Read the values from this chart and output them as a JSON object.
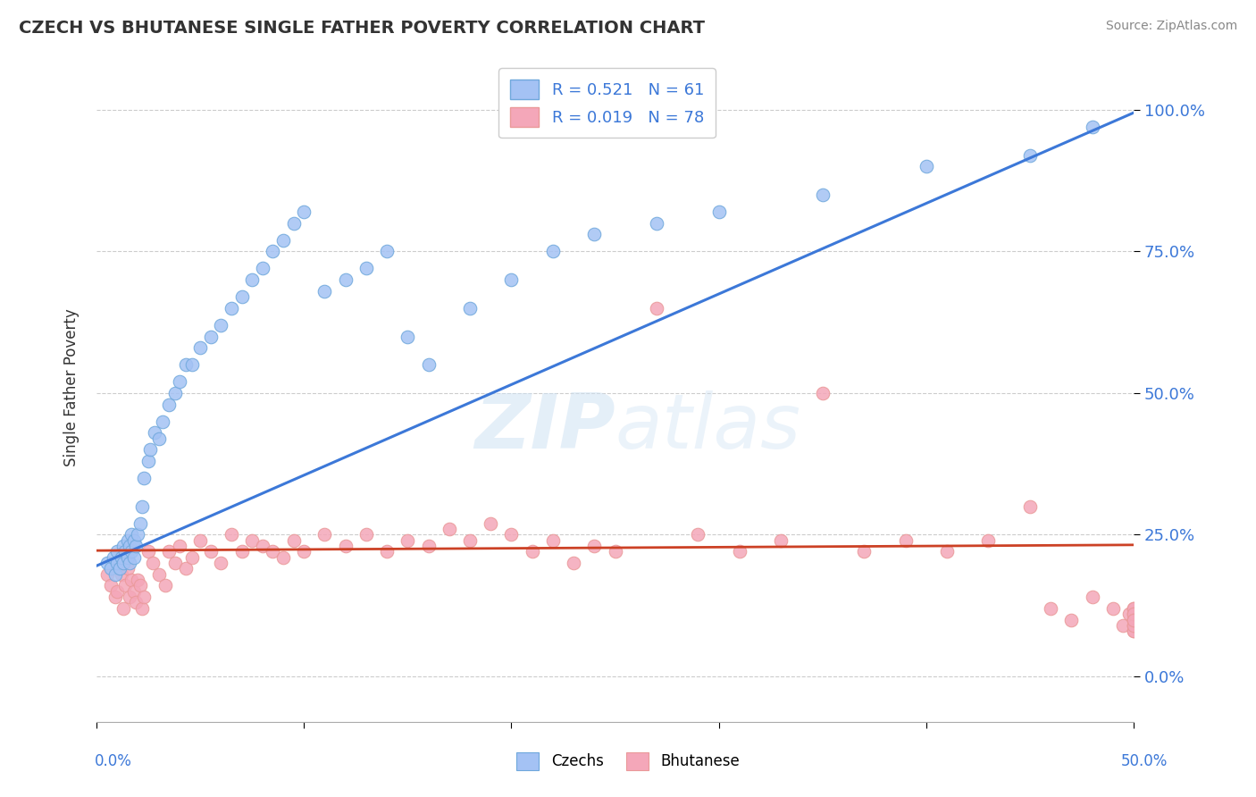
{
  "title": "CZECH VS BHUTANESE SINGLE FATHER POVERTY CORRELATION CHART",
  "source": "Source: ZipAtlas.com",
  "ylabel": "Single Father Poverty",
  "xlim": [
    0,
    0.5
  ],
  "ylim": [
    -0.08,
    1.1
  ],
  "czech_R": 0.521,
  "czech_N": 61,
  "bhutanese_R": 0.019,
  "bhutanese_N": 78,
  "czech_color": "#a4c2f4",
  "czech_color_edge": "#6fa8dc",
  "bhutanese_color": "#f4a7b9",
  "bhutanese_color_edge": "#ea9999",
  "czech_line_color": "#3c78d8",
  "bhutanese_line_color": "#cc4125",
  "watermark_color": "#c9daf8",
  "ytick_labels": [
    "0.0%",
    "25.0%",
    "50.0%",
    "75.0%",
    "100.0%"
  ],
  "ytick_values": [
    0.0,
    0.25,
    0.5,
    0.75,
    1.0
  ],
  "czech_line_x": [
    0.0,
    0.5
  ],
  "czech_line_y": [
    0.195,
    0.995
  ],
  "bhutanese_line_x": [
    0.0,
    0.5
  ],
  "bhutanese_line_y": [
    0.222,
    0.232
  ],
  "czech_scatter_x": [
    0.005,
    0.007,
    0.008,
    0.009,
    0.01,
    0.01,
    0.011,
    0.012,
    0.013,
    0.013,
    0.014,
    0.015,
    0.015,
    0.016,
    0.016,
    0.017,
    0.017,
    0.018,
    0.018,
    0.019,
    0.02,
    0.021,
    0.022,
    0.023,
    0.025,
    0.026,
    0.028,
    0.03,
    0.032,
    0.035,
    0.038,
    0.04,
    0.043,
    0.046,
    0.05,
    0.055,
    0.06,
    0.065,
    0.07,
    0.075,
    0.08,
    0.085,
    0.09,
    0.095,
    0.1,
    0.11,
    0.12,
    0.13,
    0.14,
    0.15,
    0.16,
    0.18,
    0.2,
    0.22,
    0.24,
    0.27,
    0.3,
    0.35,
    0.4,
    0.45,
    0.48
  ],
  "czech_scatter_y": [
    0.2,
    0.19,
    0.21,
    0.18,
    0.2,
    0.22,
    0.19,
    0.21,
    0.2,
    0.23,
    0.22,
    0.21,
    0.24,
    0.2,
    0.23,
    0.22,
    0.25,
    0.21,
    0.24,
    0.23,
    0.25,
    0.27,
    0.3,
    0.35,
    0.38,
    0.4,
    0.43,
    0.42,
    0.45,
    0.48,
    0.5,
    0.52,
    0.55,
    0.55,
    0.58,
    0.6,
    0.62,
    0.65,
    0.67,
    0.7,
    0.72,
    0.75,
    0.77,
    0.8,
    0.82,
    0.68,
    0.7,
    0.72,
    0.75,
    0.6,
    0.55,
    0.65,
    0.7,
    0.75,
    0.78,
    0.8,
    0.82,
    0.85,
    0.9,
    0.92,
    0.97
  ],
  "bhutanese_scatter_x": [
    0.005,
    0.007,
    0.009,
    0.01,
    0.012,
    0.013,
    0.014,
    0.015,
    0.016,
    0.017,
    0.018,
    0.019,
    0.02,
    0.021,
    0.022,
    0.023,
    0.025,
    0.027,
    0.03,
    0.033,
    0.035,
    0.038,
    0.04,
    0.043,
    0.046,
    0.05,
    0.055,
    0.06,
    0.065,
    0.07,
    0.075,
    0.08,
    0.085,
    0.09,
    0.095,
    0.1,
    0.11,
    0.12,
    0.13,
    0.14,
    0.15,
    0.16,
    0.17,
    0.18,
    0.19,
    0.2,
    0.21,
    0.22,
    0.23,
    0.24,
    0.25,
    0.27,
    0.29,
    0.31,
    0.33,
    0.35,
    0.37,
    0.39,
    0.41,
    0.43,
    0.45,
    0.46,
    0.47,
    0.48,
    0.49,
    0.495,
    0.498,
    0.5,
    0.5,
    0.5,
    0.5,
    0.5,
    0.5,
    0.5,
    0.5,
    0.5,
    0.5,
    0.5
  ],
  "bhutanese_scatter_y": [
    0.18,
    0.16,
    0.14,
    0.15,
    0.18,
    0.12,
    0.16,
    0.19,
    0.14,
    0.17,
    0.15,
    0.13,
    0.17,
    0.16,
    0.12,
    0.14,
    0.22,
    0.2,
    0.18,
    0.16,
    0.22,
    0.2,
    0.23,
    0.19,
    0.21,
    0.24,
    0.22,
    0.2,
    0.25,
    0.22,
    0.24,
    0.23,
    0.22,
    0.21,
    0.24,
    0.22,
    0.25,
    0.23,
    0.25,
    0.22,
    0.24,
    0.23,
    0.26,
    0.24,
    0.27,
    0.25,
    0.22,
    0.24,
    0.2,
    0.23,
    0.22,
    0.65,
    0.25,
    0.22,
    0.24,
    0.5,
    0.22,
    0.24,
    0.22,
    0.24,
    0.3,
    0.12,
    0.1,
    0.14,
    0.12,
    0.09,
    0.11,
    0.08,
    0.1,
    0.12,
    0.09,
    0.11,
    0.1,
    0.08,
    0.12,
    0.09,
    0.11,
    0.1
  ]
}
